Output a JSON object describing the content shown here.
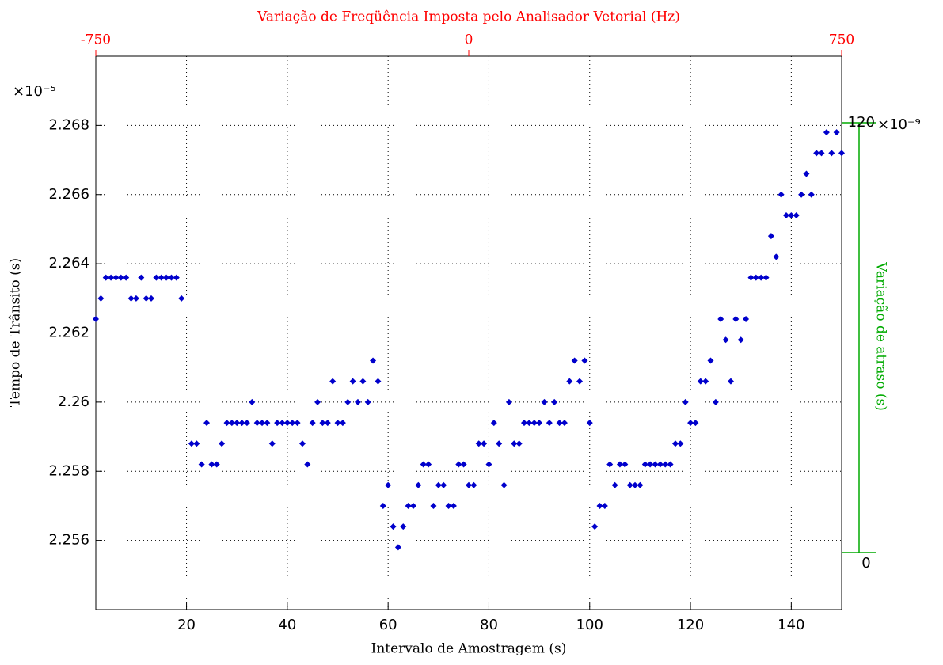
{
  "chart_data": {
    "type": "scatter",
    "title": "Variação de Freqüência Imposta pelo Analisador Vetorial (Hz)",
    "xlabel": "Intervalo de Amostragem (s)",
    "ylabel": "Tempo de Trânsito (s)",
    "y2label": "Variação de atraso (s)",
    "y_multiplier": "×10⁻⁵",
    "y2_multiplier": "×10⁻⁹",
    "color": "#0000cc",
    "title_color": "#ff0000",
    "y2_color": "#00aa00",
    "grid": true,
    "xlim": [
      2,
      150
    ],
    "xticks": [
      20,
      40,
      60,
      80,
      100,
      120,
      140
    ],
    "ylim": [
      2.254,
      2.27
    ],
    "yticks": [
      2.256,
      2.258,
      2.26,
      2.262,
      2.264,
      2.266,
      2.268
    ],
    "x2lim": [
      -750,
      750
    ],
    "x2ticks": [
      -750,
      0,
      750
    ],
    "y2lim": [
      0,
      120
    ],
    "y2ticks": [
      0,
      120
    ],
    "x": [
      2,
      3,
      4,
      5,
      6,
      7,
      8,
      9,
      10,
      11,
      12,
      13,
      14,
      15,
      16,
      17,
      18,
      19,
      21,
      22,
      23,
      24,
      25,
      26,
      27,
      28,
      29,
      30,
      31,
      32,
      33,
      34,
      35,
      36,
      37,
      38,
      39,
      40,
      41,
      42,
      43,
      44,
      45,
      46,
      47,
      48,
      49,
      50,
      51,
      52,
      53,
      54,
      55,
      56,
      57,
      58,
      59,
      60,
      61,
      62,
      63,
      64,
      65,
      66,
      67,
      68,
      69,
      70,
      71,
      72,
      73,
      74,
      75,
      76,
      77,
      78,
      79,
      80,
      81,
      82,
      83,
      84,
      85,
      86,
      87,
      88,
      89,
      90,
      91,
      92,
      93,
      94,
      95,
      96,
      97,
      98,
      99,
      100,
      101,
      102,
      103,
      104,
      105,
      106,
      107,
      108,
      109,
      110,
      111,
      112,
      113,
      114,
      115,
      116,
      117,
      118,
      119,
      120,
      121,
      122,
      123,
      124,
      125,
      126,
      127,
      128,
      129,
      130,
      131,
      132,
      133,
      134,
      135,
      136,
      137,
      138,
      139,
      140,
      141,
      142,
      143,
      144,
      145,
      146,
      147,
      148,
      149,
      150
    ],
    "values": [
      2.2624,
      2.263,
      2.2636,
      2.2636,
      2.2636,
      2.2636,
      2.2636,
      2.263,
      2.263,
      2.2636,
      2.263,
      2.263,
      2.2636,
      2.2636,
      2.2636,
      2.2636,
      2.2636,
      2.263,
      2.2588,
      2.2588,
      2.2582,
      2.2594,
      2.2582,
      2.2582,
      2.2588,
      2.2594,
      2.2594,
      2.2594,
      2.2594,
      2.2594,
      2.26,
      2.2594,
      2.2594,
      2.2594,
      2.2588,
      2.2594,
      2.2594,
      2.2594,
      2.2594,
      2.2594,
      2.2588,
      2.2582,
      2.2594,
      2.26,
      2.2594,
      2.2594,
      2.2606,
      2.2594,
      2.2594,
      2.26,
      2.2606,
      2.26,
      2.2606,
      2.26,
      2.2612,
      2.2606,
      2.257,
      2.2576,
      2.2564,
      2.2558,
      2.2564,
      2.257,
      2.257,
      2.2576,
      2.2582,
      2.2582,
      2.257,
      2.2576,
      2.2576,
      2.257,
      2.257,
      2.2582,
      2.2582,
      2.2576,
      2.2576,
      2.2588,
      2.2588,
      2.2582,
      2.2594,
      2.2588,
      2.2576,
      2.26,
      2.2588,
      2.2588,
      2.2594,
      2.2594,
      2.2594,
      2.2594,
      2.26,
      2.2594,
      2.26,
      2.2594,
      2.2594,
      2.2606,
      2.2612,
      2.2606,
      2.2612,
      2.2594,
      2.2564,
      2.257,
      2.257,
      2.2582,
      2.2576,
      2.2582,
      2.2582,
      2.2576,
      2.2576,
      2.2576,
      2.2582,
      2.2582,
      2.2582,
      2.2582,
      2.2582,
      2.2582,
      2.2588,
      2.2588,
      2.26,
      2.2594,
      2.2594,
      2.2606,
      2.2606,
      2.2612,
      2.26,
      2.2624,
      2.2618,
      2.2606,
      2.2624,
      2.2618,
      2.2624,
      2.2636,
      2.2636,
      2.2636,
      2.2636,
      2.2648,
      2.2642,
      2.266,
      2.2654,
      2.2654,
      2.2654,
      2.266,
      2.2666,
      2.266,
      2.2672,
      2.2672,
      2.2678,
      2.2672,
      2.2678,
      2.2672
    ]
  }
}
